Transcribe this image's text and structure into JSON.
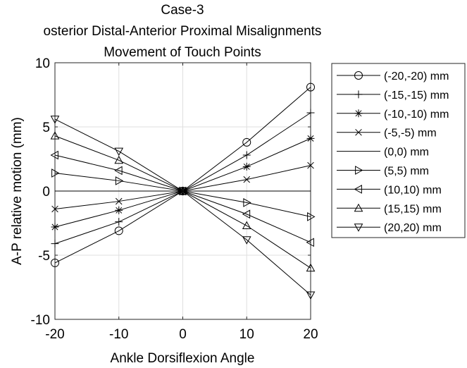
{
  "chart_data": {
    "type": "line",
    "title_lines": [
      "Case-3",
      "osterior Distal-Anterior Proximal Misalignments",
      "Movement of Touch Points"
    ],
    "xlabel": "Ankle Dorsiflexion Angle",
    "ylabel": "A-P relative motion (mm)",
    "xlim": [
      -20,
      20
    ],
    "ylim": [
      -10,
      10
    ],
    "xticks": [
      -20,
      -10,
      0,
      10,
      20
    ],
    "yticks": [
      -10,
      -5,
      0,
      5,
      10
    ],
    "xtick_labels": [
      "-20",
      "-10",
      "0",
      "10",
      "20"
    ],
    "ytick_labels": [
      "-10",
      "-5",
      "0",
      "5",
      "10"
    ],
    "grid": true,
    "legend_position": "right-outside",
    "x": [
      -20,
      -10,
      0,
      10,
      20
    ],
    "series": [
      {
        "name": "(-20,-20) mm",
        "marker": "circle",
        "values": [
          -5.6,
          -3.1,
          0,
          3.8,
          8.1
        ]
      },
      {
        "name": "(-15,-15) mm",
        "marker": "plus",
        "values": [
          -4.1,
          -2.4,
          0,
          2.8,
          6.1
        ]
      },
      {
        "name": "(-10,-10) mm",
        "marker": "asterisk",
        "values": [
          -2.8,
          -1.5,
          0,
          1.9,
          4.1
        ]
      },
      {
        "name": "(-5,-5) mm",
        "marker": "cross",
        "values": [
          -1.4,
          -0.8,
          0,
          0.9,
          2.0
        ]
      },
      {
        "name": "(0,0) mm",
        "marker": "none",
        "values": [
          0,
          0,
          0,
          0,
          0
        ]
      },
      {
        "name": "(5,5) mm",
        "marker": "tri-right",
        "values": [
          1.4,
          0.8,
          0,
          -0.9,
          -2.0
        ]
      },
      {
        "name": "(10,10) mm",
        "marker": "tri-left",
        "values": [
          2.8,
          1.6,
          0,
          -1.8,
          -4.0
        ]
      },
      {
        "name": "(15,15) mm",
        "marker": "tri-up",
        "values": [
          4.3,
          2.4,
          0,
          -2.7,
          -6.0
        ]
      },
      {
        "name": "(20,20) mm",
        "marker": "tri-down",
        "values": [
          5.6,
          3.1,
          0,
          -3.8,
          -8.1
        ]
      }
    ]
  }
}
